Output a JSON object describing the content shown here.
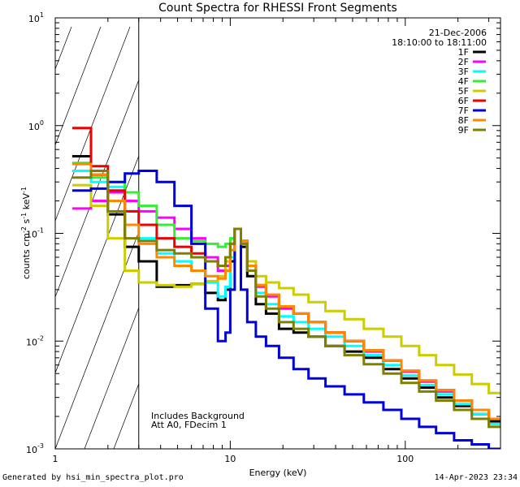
{
  "chart_data": {
    "type": "line",
    "title": "Count Spectra for RHESSI Front Segments",
    "xlabel": "Energy (keV)",
    "ylabel": "counts cm",
    "ylabel_sup1": "-2",
    "ylabel_mid": " s",
    "ylabel_sup2": "-1",
    "ylabel_end": " keV",
    "ylabel_sup3": "-1",
    "xscale": "log",
    "yscale": "log",
    "xlim": [
      1,
      350
    ],
    "ylim": [
      0.001,
      10
    ],
    "x_tick_labels": [
      {
        "value": 1,
        "label": "1"
      },
      {
        "value": 10,
        "label": "10"
      },
      {
        "value": 100,
        "label": "100"
      }
    ],
    "y_tick_labels": [
      {
        "value": 10,
        "base": "10",
        "exp": "1"
      },
      {
        "value": 1,
        "base": "10",
        "exp": "0"
      },
      {
        "value": 0.1,
        "base": "10",
        "exp": "-1"
      },
      {
        "value": 0.01,
        "base": "10",
        "exp": "-2"
      },
      {
        "value": 0.001,
        "base": "10",
        "exp": "-3"
      }
    ],
    "date": "21-Dec-2006",
    "time_range": "18:10:00 to 18:11:00",
    "hatched_region_below_keV": 3,
    "annotations": [
      "Includes Background",
      "Att A0, FDecim 1"
    ],
    "legend_position": "top-right",
    "series": [
      {
        "name": "1F",
        "color": "#000000",
        "y": [
          0.52,
          0.35,
          0.15,
          0.075,
          0.055,
          0.032,
          0.033,
          0.034,
          0.028,
          0.024,
          0.03,
          0.055,
          0.11,
          0.075,
          0.04,
          0.022,
          0.018,
          0.013,
          0.012,
          0.011,
          0.009,
          0.008,
          0.007,
          0.0055,
          0.0045,
          0.0037,
          0.003,
          0.0025,
          0.0021,
          0.0018
        ]
      },
      {
        "name": "2F",
        "color": "#ff00ff",
        "y": [
          0.17,
          0.2,
          0.24,
          0.2,
          0.16,
          0.14,
          0.11,
          0.09,
          0.06,
          0.045,
          0.05,
          0.07,
          0.11,
          0.085,
          0.05,
          0.032,
          0.026,
          0.02,
          0.018,
          0.015,
          0.012,
          0.01,
          0.008,
          0.0066,
          0.0052,
          0.0042,
          0.0034,
          0.0028,
          0.0023,
          0.0019
        ]
      },
      {
        "name": "3F",
        "color": "#00ffff",
        "y": [
          0.38,
          0.3,
          0.27,
          0.16,
          0.09,
          0.065,
          0.055,
          0.045,
          0.035,
          0.026,
          0.032,
          0.06,
          0.11,
          0.08,
          0.045,
          0.028,
          0.022,
          0.017,
          0.015,
          0.013,
          0.011,
          0.009,
          0.0074,
          0.006,
          0.0048,
          0.0039,
          0.0032,
          0.0026,
          0.0021,
          0.0017
        ]
      },
      {
        "name": "4F",
        "color": "#33ee33",
        "y": [
          0.45,
          0.33,
          0.3,
          0.24,
          0.18,
          0.12,
          0.09,
          0.085,
          0.08,
          0.075,
          0.08,
          0.09,
          0.11,
          0.085,
          0.05,
          0.033,
          0.027,
          0.021,
          0.018,
          0.015,
          0.012,
          0.01,
          0.0082,
          0.0066,
          0.0053,
          0.0043,
          0.0035,
          0.0028,
          0.0023,
          0.0019
        ]
      },
      {
        "name": "5F",
        "color": "#cccc00",
        "y": [
          0.28,
          0.18,
          0.09,
          0.045,
          0.035,
          0.033,
          0.032,
          0.034,
          0.036,
          0.04,
          0.055,
          0.08,
          0.11,
          0.085,
          0.055,
          0.04,
          0.035,
          0.031,
          0.027,
          0.023,
          0.019,
          0.016,
          0.013,
          0.011,
          0.009,
          0.0074,
          0.006,
          0.0049,
          0.004,
          0.0033
        ]
      },
      {
        "name": "6F",
        "color": "#ee0000",
        "y": [
          0.95,
          0.42,
          0.25,
          0.16,
          0.12,
          0.09,
          0.075,
          0.065,
          0.055,
          0.05,
          0.06,
          0.08,
          0.11,
          0.085,
          0.05,
          0.033,
          0.027,
          0.021,
          0.018,
          0.015,
          0.012,
          0.01,
          0.0082,
          0.0066,
          0.0053,
          0.0043,
          0.0035,
          0.0028,
          0.0023,
          0.0019
        ]
      },
      {
        "name": "7F",
        "color": "#0000dd",
        "y": [
          0.25,
          0.26,
          0.3,
          0.36,
          0.38,
          0.3,
          0.18,
          0.08,
          0.02,
          0.01,
          0.012,
          0.03,
          0.11,
          0.03,
          0.015,
          0.011,
          0.009,
          0.007,
          0.0055,
          0.0045,
          0.0038,
          0.0032,
          0.0027,
          0.0023,
          0.0019,
          0.0016,
          0.0014,
          0.0012,
          0.0011,
          0.001
        ]
      },
      {
        "name": "8F",
        "color": "#ff8800",
        "y": [
          0.44,
          0.35,
          0.2,
          0.12,
          0.08,
          0.06,
          0.05,
          0.045,
          0.04,
          0.038,
          0.045,
          0.07,
          0.11,
          0.085,
          0.05,
          0.033,
          0.027,
          0.021,
          0.018,
          0.015,
          0.012,
          0.01,
          0.0082,
          0.0066,
          0.0053,
          0.0043,
          0.0035,
          0.0028,
          0.0023,
          0.0019
        ]
      },
      {
        "name": "9F",
        "color": "#808000",
        "y": [
          0.33,
          0.38,
          0.16,
          0.09,
          0.085,
          0.07,
          0.065,
          0.06,
          0.055,
          0.05,
          0.06,
          0.08,
          0.11,
          0.08,
          0.045,
          0.026,
          0.02,
          0.015,
          0.013,
          0.011,
          0.009,
          0.0074,
          0.0061,
          0.005,
          0.0041,
          0.0034,
          0.0028,
          0.0023,
          0.0019,
          0.0016
        ]
      }
    ],
    "x": [
      1.25,
      1.6,
      2.0,
      2.5,
      3.0,
      3.8,
      4.8,
      6.0,
      7.2,
      8.5,
      9.4,
      10.0,
      10.6,
      11.5,
      12.5,
      14,
      16,
      19,
      23,
      28,
      35,
      45,
      58,
      75,
      95,
      120,
      150,
      190,
      240,
      300
    ]
  },
  "footer": {
    "generated_by": "Generated by hsi_min_spectra_plot.pro",
    "timestamp": "14-Apr-2023 23:34"
  }
}
